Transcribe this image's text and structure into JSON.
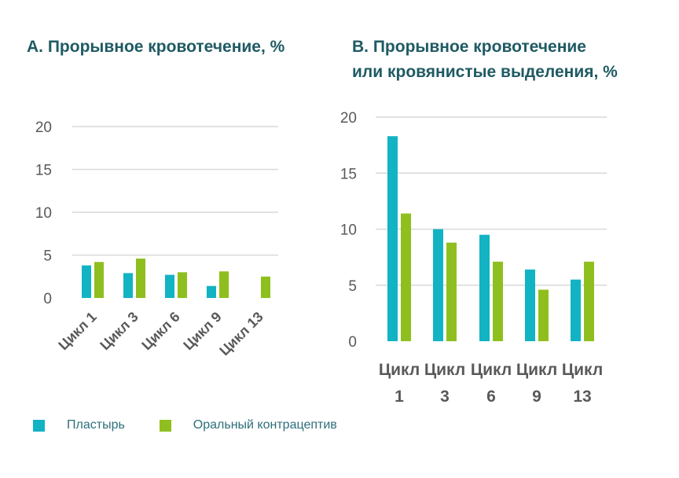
{
  "colors": {
    "patch": "#12b3c3",
    "oral": "#8fbf1e",
    "title": "#1f5a63",
    "grid": "#d9d9d9",
    "tick": "#595959"
  },
  "legend": [
    {
      "label": "Пластырь",
      "color": "#12b3c3"
    },
    {
      "label": "Оральный контрацептив",
      "color": "#8fbf1e"
    }
  ],
  "chart_data": [
    {
      "type": "bar",
      "title": "А. Прорывное кровотечение, %",
      "categories": [
        "Цикл 1",
        "Цикл 3",
        "Цикл 6",
        "Цикл 9",
        "Цикл 13"
      ],
      "series": [
        {
          "name": "Пластырь",
          "values": [
            3.8,
            2.9,
            2.7,
            1.4,
            0
          ]
        },
        {
          "name": "Оральный контрацептив",
          "values": [
            4.2,
            4.6,
            3.0,
            3.1,
            2.5
          ]
        }
      ],
      "yticks": [
        "0",
        "5",
        "10",
        "15",
        "20"
      ],
      "ylim": [
        0,
        20
      ],
      "xlabel": "",
      "ylabel": ""
    },
    {
      "type": "bar",
      "title": "В. Прорывное кровотечение или кровянистые выделения, %",
      "title_lines": [
        "В. Прорывное кровотечение",
        "или кровянистые выделения, %"
      ],
      "categories": [
        "Цикл 1",
        "Цикл 3",
        "Цикл 6",
        "Цикл 9",
        "Цикл 13"
      ],
      "category_lines": [
        [
          "Цикл",
          "1"
        ],
        [
          "Цикл",
          "3"
        ],
        [
          "Цикл",
          "6"
        ],
        [
          "Цикл",
          "9"
        ],
        [
          "Цикл",
          "13"
        ]
      ],
      "series": [
        {
          "name": "Пластырь",
          "values": [
            18.3,
            10.0,
            9.5,
            6.4,
            5.5
          ]
        },
        {
          "name": "Оральный контрацептив",
          "values": [
            11.4,
            8.8,
            7.1,
            4.6,
            7.1
          ]
        }
      ],
      "yticks": [
        "0",
        "5",
        "10",
        "15",
        "20"
      ],
      "ylim": [
        0,
        20
      ],
      "xlabel": "",
      "ylabel": ""
    }
  ]
}
